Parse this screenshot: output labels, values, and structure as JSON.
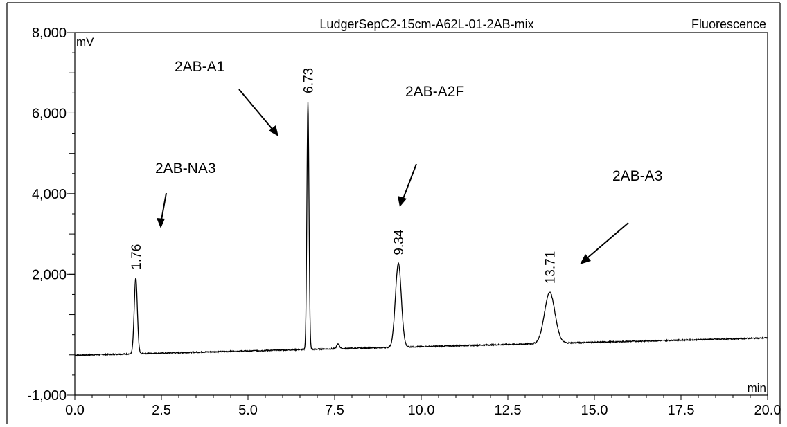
{
  "chart_data": {
    "type": "line",
    "title": "LudgerSepC2-15cm-A62L-01-2AB-mix",
    "detector": "Fluorescence",
    "xlabel": "min",
    "ylabel": "mV",
    "xlim": [
      0,
      20
    ],
    "ylim": [
      -1000,
      8000
    ],
    "x_ticks": [
      "0.0",
      "2.5",
      "5.0",
      "7.5",
      "10.0",
      "12.5",
      "15.0",
      "17.5",
      "20.0"
    ],
    "y_ticks": [
      "-1,000",
      "2,000",
      "4,000",
      "6,000",
      "8,000"
    ],
    "grid": false,
    "baseline": {
      "start_mv": -10,
      "end_mv": 420
    },
    "series": [
      {
        "peaks": [
          {
            "rt": 1.76,
            "label": "1.76",
            "height_mv": 1880,
            "width_min": 0.09
          },
          {
            "rt": 6.73,
            "label": "6.73",
            "height_mv": 6150,
            "width_min": 0.06
          },
          {
            "rt": 7.6,
            "label": "",
            "height_mv": 120,
            "width_min": 0.08
          },
          {
            "rt": 9.34,
            "label": "9.34",
            "height_mv": 2080,
            "width_min": 0.17
          },
          {
            "rt": 13.71,
            "label": "13.71",
            "height_mv": 1270,
            "width_min": 0.3
          }
        ]
      }
    ],
    "annotations": [
      {
        "text": "2AB-NA3",
        "points_to_rt": 1.76
      },
      {
        "text": "2AB-A1",
        "points_to_rt": 6.73
      },
      {
        "text": "2AB-A2F",
        "points_to_rt": 9.34
      },
      {
        "text": "2AB-A3",
        "points_to_rt": 13.71
      }
    ]
  }
}
